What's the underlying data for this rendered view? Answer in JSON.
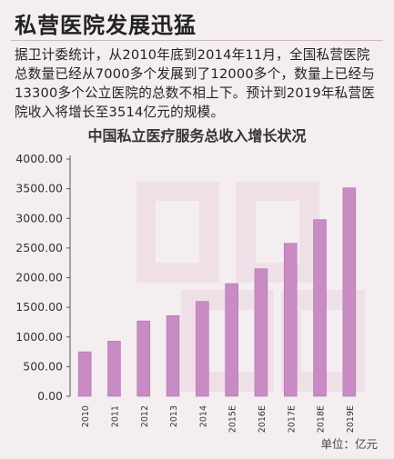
{
  "headline": "私营医院发展迅猛",
  "paragraph": "据卫计委统计，从2010年底到2014年11月，全国私营医院总数量已经从7000多个发展到了12000多个，数量上已经与13300多个公立医院的总数不相上下。预计到2019年私营医院收入将增长至3514亿元的规模。",
  "colors": {
    "bar": "#c88bc4",
    "bar_edge": "#b574b0",
    "axis": "#555555",
    "background": "#f4eef0"
  },
  "chart_data": {
    "type": "bar",
    "title": "中国私立医疗服务总收入增长状况",
    "unit_label": "单位：亿元",
    "categories": [
      "2010",
      "2011",
      "2012",
      "2013",
      "2014",
      "2015E",
      "2016E",
      "2017E",
      "2018E",
      "2019E"
    ],
    "values": [
      750,
      930,
      1270,
      1360,
      1600,
      1900,
      2150,
      2580,
      2980,
      3514
    ],
    "yticks": [
      "0.00",
      "500.00",
      "1000.00",
      "1500.00",
      "2000.00",
      "2500.00",
      "3000.00",
      "3500.00",
      "4000.00"
    ],
    "ylim": [
      0,
      4000
    ],
    "grid": false,
    "legend": "none"
  }
}
